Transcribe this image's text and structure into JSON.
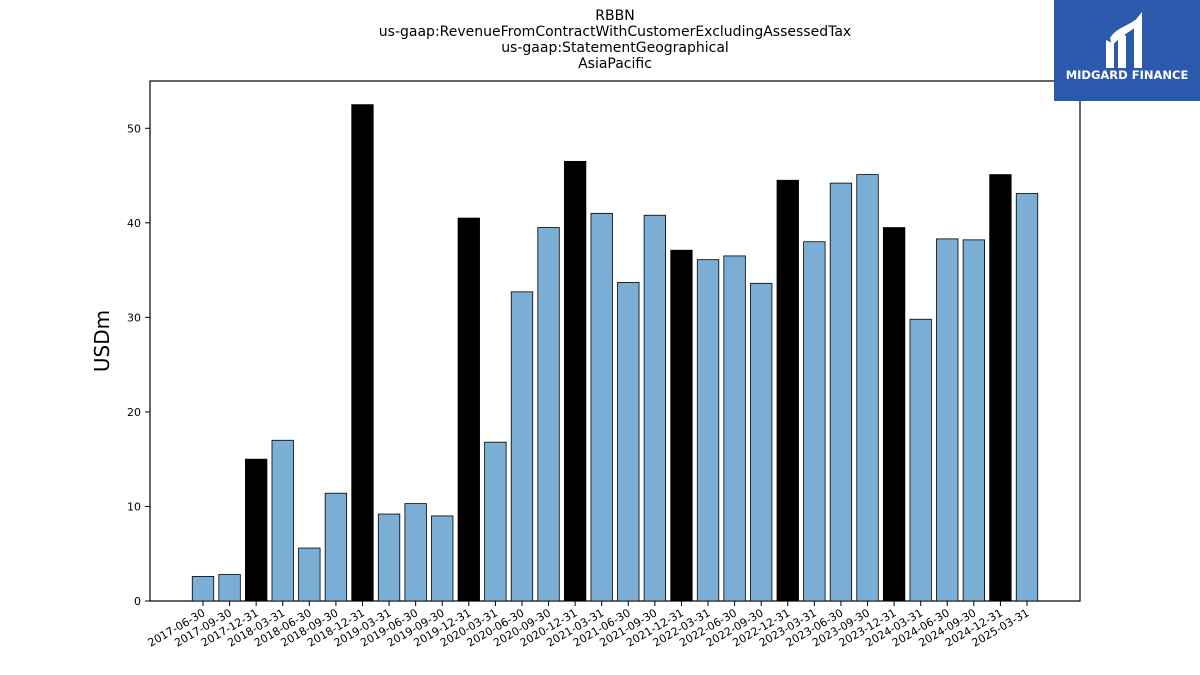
{
  "chart_data": {
    "type": "bar",
    "title_lines": [
      "RBBN",
      "us-gaap:RevenueFromContractWithCustomerExcludingAssessedTax",
      "us-gaap:StatementGeographical",
      "AsiaPacific"
    ],
    "ylabel": "USDm",
    "xlabel": "",
    "ylim": [
      0,
      55
    ],
    "yticks": [
      0,
      10,
      20,
      30,
      40,
      50
    ],
    "grid": false,
    "colors": {
      "quarter": "#7aaed4",
      "year_end": "#000000",
      "edge": "#000000"
    },
    "categories": [
      "2017-06-30",
      "2017-09-30",
      "2017-12-31",
      "2018-03-31",
      "2018-06-30",
      "2018-09-30",
      "2018-12-31",
      "2019-03-31",
      "2019-06-30",
      "2019-09-30",
      "2019-12-31",
      "2020-03-31",
      "2020-06-30",
      "2020-09-30",
      "2020-12-31",
      "2021-03-31",
      "2021-06-30",
      "2021-09-30",
      "2021-12-31",
      "2022-03-31",
      "2022-06-30",
      "2022-09-30",
      "2022-12-31",
      "2023-03-31",
      "2023-06-30",
      "2023-09-30",
      "2023-12-31",
      "2024-03-31",
      "2024-06-30",
      "2024-09-30",
      "2024-12-31",
      "2025-03-31"
    ],
    "values": [
      2.6,
      2.8,
      15.0,
      17.0,
      5.6,
      11.4,
      52.5,
      9.2,
      10.3,
      9.0,
      40.5,
      16.8,
      32.7,
      39.5,
      46.5,
      41.0,
      33.7,
      40.8,
      37.1,
      36.1,
      36.5,
      33.6,
      44.5,
      38.0,
      44.2,
      45.1,
      39.5,
      29.8,
      38.3,
      38.2,
      45.1,
      43.1
    ],
    "year_end_flags": [
      false,
      false,
      true,
      false,
      false,
      false,
      true,
      false,
      false,
      false,
      true,
      false,
      false,
      false,
      true,
      false,
      false,
      false,
      true,
      false,
      false,
      false,
      true,
      false,
      false,
      false,
      true,
      false,
      false,
      false,
      true,
      false
    ]
  },
  "logo": {
    "text": "MIDGARD FINANCE"
  }
}
